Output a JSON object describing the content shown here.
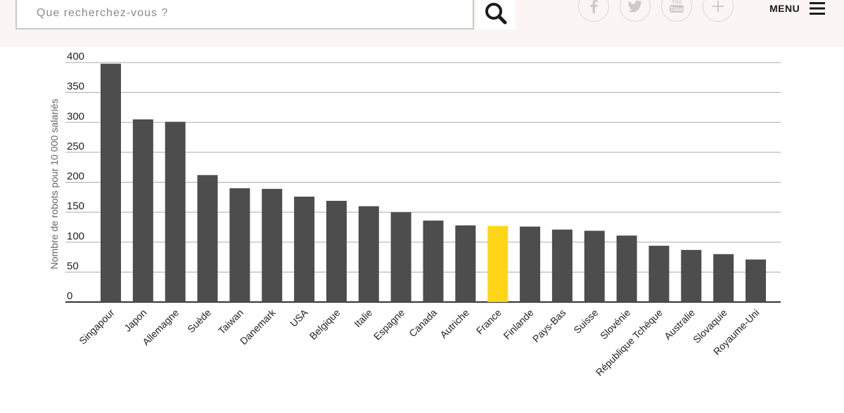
{
  "header": {
    "search_placeholder": "Que recherchez-vous ?",
    "search_icon": "search-icon",
    "social": [
      {
        "name": "facebook-icon",
        "glyph": "f"
      },
      {
        "name": "twitter-icon",
        "glyph": "twitter"
      },
      {
        "name": "youtube-icon",
        "glyph": "You Tube"
      },
      {
        "name": "plus-icon",
        "glyph": "+"
      }
    ],
    "menu_label": "MENU",
    "menu_icon": "hamburger-icon"
  },
  "colors": {
    "bar": "#4d4d4d",
    "highlight": "#ffd617",
    "grid": "#aaaaaa",
    "header_bg": "#fbf6f3"
  },
  "chart_data": {
    "type": "bar",
    "title": "",
    "xlabel": "",
    "ylabel": "Nombre de robots pour 10 000 salariés",
    "ylim": [
      0,
      400
    ],
    "yticks": [
      0,
      50,
      100,
      150,
      200,
      250,
      300,
      350,
      400
    ],
    "grid": true,
    "highlight": "France",
    "categories": [
      "Singapour",
      "Japon",
      "Allemagne",
      "Suède",
      "Taiwan",
      "Danemark",
      "USA",
      "Belgique",
      "Italie",
      "Espagne",
      "Canada",
      "Autriche",
      "France",
      "Finlande",
      "Pays-Bas",
      "Suisse",
      "Slovénie",
      "République Tchèque",
      "Australie",
      "Slovaquie",
      "Royaume-Uni"
    ],
    "values": [
      398,
      305,
      301,
      212,
      190,
      189,
      176,
      169,
      160,
      150,
      136,
      128,
      127,
      126,
      121,
      119,
      111,
      94,
      87,
      80,
      71
    ]
  }
}
